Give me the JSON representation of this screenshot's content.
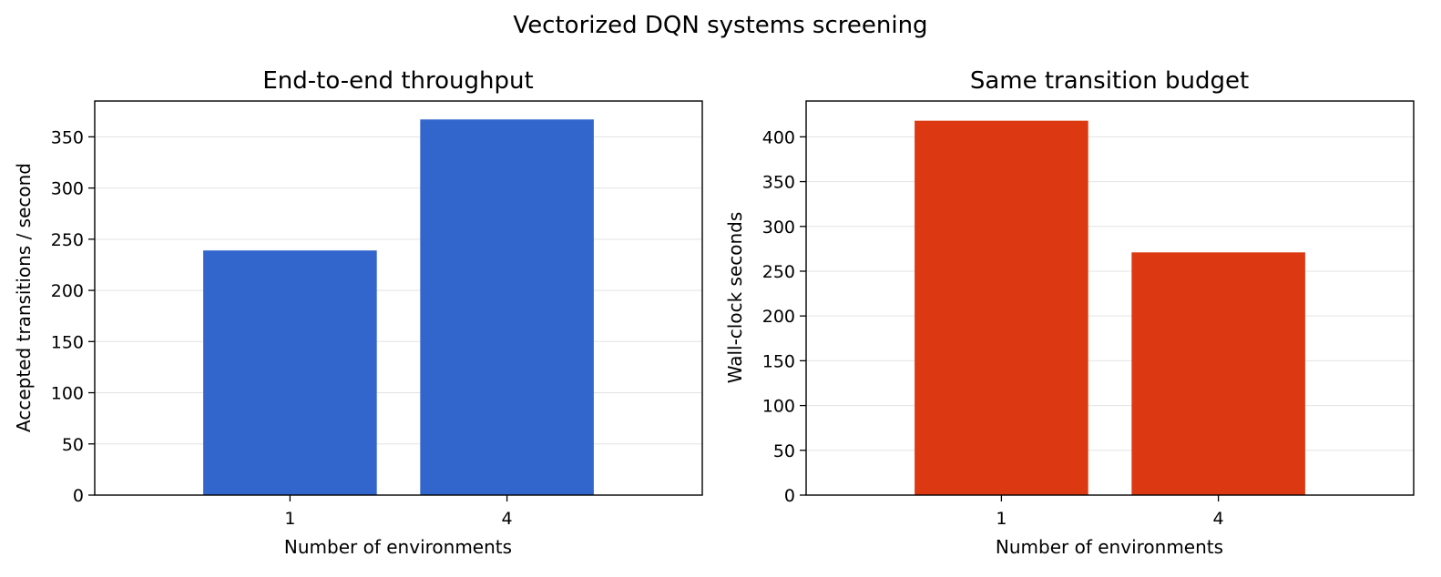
{
  "title": "Vectorized DQN systems screening",
  "chart_data": [
    {
      "type": "bar",
      "title": "End-to-end throughput",
      "xlabel": "Number of environments",
      "ylabel": "Accepted transitions / second",
      "categories": [
        "1",
        "4"
      ],
      "values": [
        239,
        367
      ],
      "ylim": [
        0,
        385
      ],
      "yticks": [
        0,
        50,
        100,
        150,
        200,
        250,
        300,
        350
      ],
      "color": "#3366cc",
      "grid": "y"
    },
    {
      "type": "bar",
      "title": "Same transition budget",
      "xlabel": "Number of environments",
      "ylabel": "Wall-clock seconds",
      "categories": [
        "1",
        "4"
      ],
      "values": [
        418,
        271
      ],
      "ylim": [
        0,
        440
      ],
      "yticks": [
        0,
        50,
        100,
        150,
        200,
        250,
        300,
        350,
        400
      ],
      "color": "#dc3912",
      "grid": "y"
    }
  ]
}
